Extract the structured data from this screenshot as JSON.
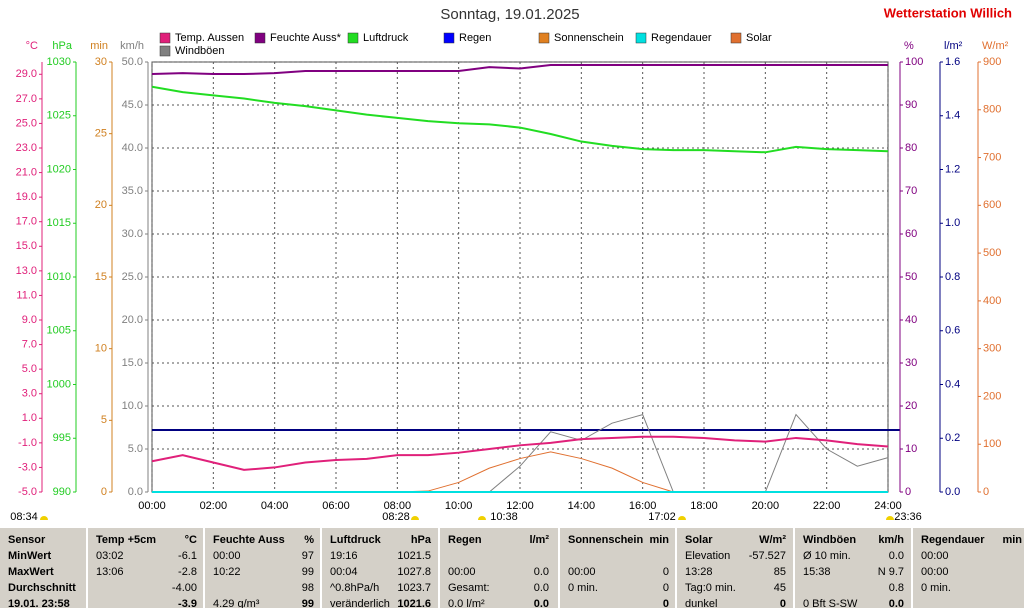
{
  "chart_data": {
    "type": "line",
    "title": "Sonntag, 19.01.2025",
    "station": "Wetterstation Willich",
    "x": [
      0,
      1,
      2,
      3,
      4,
      5,
      6,
      7,
      8,
      9,
      10,
      11,
      12,
      13,
      14,
      15,
      16,
      17,
      18,
      19,
      20,
      21,
      22,
      23,
      24
    ],
    "xlim": [
      0,
      24
    ],
    "xticks": [
      {
        "value": 0,
        "label": "00:00"
      },
      {
        "value": 2,
        "label": "02:00"
      },
      {
        "value": 4,
        "label": "04:00"
      },
      {
        "value": 6,
        "label": "06:00"
      },
      {
        "value": 8,
        "label": "08:00"
      },
      {
        "value": 10,
        "label": "10:00"
      },
      {
        "value": 12,
        "label": "12:00"
      },
      {
        "value": 14,
        "label": "14:00"
      },
      {
        "value": 16,
        "label": "16:00"
      },
      {
        "value": 18,
        "label": "18:00"
      },
      {
        "value": 20,
        "label": "20:00"
      },
      {
        "value": 22,
        "label": "22:00"
      },
      {
        "value": 24,
        "label": "24:00"
      }
    ],
    "axes": [
      {
        "id": "t",
        "label": "°C",
        "color": "#e0207a",
        "side": "left",
        "lim": [
          -5,
          30
        ],
        "ticks": [
          {
            "value": -5,
            "label": "-5.0"
          },
          {
            "value": -3,
            "label": "-3.0"
          },
          {
            "value": -1,
            "label": "-1.0"
          },
          {
            "value": 1,
            "label": "1.0"
          },
          {
            "value": 3,
            "label": "3.0"
          },
          {
            "value": 5,
            "label": "5.0"
          },
          {
            "value": 7,
            "label": "7.0"
          },
          {
            "value": 9,
            "label": "9.0"
          },
          {
            "value": 11,
            "label": "11.0"
          },
          {
            "value": 13,
            "label": "13.0"
          },
          {
            "value": 15,
            "label": "15.0"
          },
          {
            "value": 17,
            "label": "17.0"
          },
          {
            "value": 19,
            "label": "19.0"
          },
          {
            "value": 21,
            "label": "21.0"
          },
          {
            "value": 23,
            "label": "23.0"
          },
          {
            "value": 25,
            "label": "25.0"
          },
          {
            "value": 27,
            "label": "27.0"
          },
          {
            "value": 29,
            "label": "29.0"
          }
        ]
      },
      {
        "id": "p",
        "label": "hPa",
        "color": "#22cc22",
        "side": "left",
        "lim": [
          990,
          1030
        ],
        "ticks": [
          990,
          995,
          1000,
          1005,
          1010,
          1015,
          1020,
          1025,
          1030
        ]
      },
      {
        "id": "m",
        "label": "min",
        "color": "#d08020",
        "side": "left",
        "lim": [
          0,
          30
        ],
        "ticks": [
          0,
          5,
          10,
          15,
          20,
          25,
          30
        ]
      },
      {
        "id": "w",
        "label": "km/h",
        "color": "#808080",
        "side": "left",
        "lim": [
          0,
          50
        ],
        "grid": true,
        "ticks": [
          {
            "value": 0,
            "label": "0.0"
          },
          {
            "value": 5,
            "label": "5.0"
          },
          {
            "value": 10,
            "label": "10.0"
          },
          {
            "value": 15,
            "label": "15.0"
          },
          {
            "value": 20,
            "label": "20.0"
          },
          {
            "value": 25,
            "label": "25.0"
          },
          {
            "value": 30,
            "label": "30.0"
          },
          {
            "value": 35,
            "label": "35.0"
          },
          {
            "value": 40,
            "label": "40.0"
          },
          {
            "value": 45,
            "label": "45.0"
          },
          {
            "value": 50,
            "label": "50.0"
          }
        ]
      },
      {
        "id": "h",
        "label": "%",
        "color": "#800080",
        "side": "right",
        "lim": [
          0,
          100
        ],
        "ticks": [
          0,
          10,
          20,
          30,
          40,
          50,
          60,
          70,
          80,
          90,
          100
        ]
      },
      {
        "id": "r",
        "label": "l/m²",
        "color": "#000080",
        "side": "right",
        "lim": [
          0,
          1.6
        ],
        "ticks": [
          {
            "value": 0,
            "label": "0.0"
          },
          0.2,
          0.4,
          0.6,
          0.8,
          {
            "value": 1,
            "label": "1.0"
          },
          1.2,
          1.4,
          1.6
        ]
      },
      {
        "id": "s",
        "label": "W/m²",
        "color": "#e07030",
        "side": "right",
        "lim": [
          0,
          900
        ],
        "ticks": [
          0,
          100,
          200,
          300,
          400,
          500,
          600,
          700,
          800,
          900
        ]
      }
    ],
    "series": [
      {
        "name": "Temp. Aussen",
        "color": "#e0207a",
        "axis": "t",
        "values": [
          -2.5,
          -2.0,
          -2.6,
          -3.2,
          -3.0,
          -2.6,
          -2.4,
          -2.3,
          -2.0,
          -2.0,
          -1.8,
          -1.5,
          -1.2,
          -1.0,
          -0.7,
          -0.6,
          -0.5,
          -0.5,
          -0.6,
          -0.8,
          -0.9,
          -0.6,
          -0.8,
          -1.1,
          -1.3
        ]
      },
      {
        "name": "Feuchte Auss*",
        "color": "#800080",
        "axis": "h",
        "values": [
          97.2,
          97.4,
          97.2,
          97.2,
          97.4,
          97.9,
          97.9,
          97.9,
          97.9,
          97.9,
          97.9,
          98.8,
          98.5,
          99.3,
          99.3,
          99.3,
          99.3,
          99.3,
          99.3,
          99.3,
          99.3,
          99.3,
          99.3,
          99.3,
          99.3
        ]
      },
      {
        "name": "Luftdruck",
        "color": "#22dd22",
        "axis": "p",
        "values": [
          1027.7,
          1027.2,
          1026.9,
          1026.6,
          1026.2,
          1025.9,
          1025.5,
          1025.1,
          1024.8,
          1024.5,
          1024.3,
          1024.2,
          1023.9,
          1023.3,
          1022.6,
          1022.2,
          1021.9,
          1021.8,
          1021.8,
          1021.7,
          1021.6,
          1022.1,
          1021.9,
          1021.8,
          1021.7
        ]
      },
      {
        "name": "Regen",
        "color": "#0000ff",
        "axis": "r",
        "values": [
          0,
          0,
          0,
          0,
          0,
          0,
          0,
          0,
          0,
          0,
          0,
          0,
          0,
          0,
          0,
          0,
          0,
          0,
          0,
          0,
          0,
          0,
          0,
          0,
          0
        ]
      },
      {
        "name": "Sonnenschein",
        "color": "#e08020",
        "axis": "m",
        "values": [
          0,
          0,
          0,
          0,
          0,
          0,
          0,
          0,
          0,
          0,
          0,
          0,
          0,
          0,
          0,
          0,
          0,
          0,
          0,
          0,
          0,
          0,
          0,
          0,
          0
        ]
      },
      {
        "name": "Regendauer",
        "color": "#00e0e0",
        "axis": "m",
        "values": [
          0,
          0,
          0,
          0,
          0,
          0,
          0,
          0,
          0,
          0,
          0,
          0,
          0,
          0,
          0,
          0,
          0,
          0,
          0,
          0,
          0,
          0,
          0,
          0,
          0
        ]
      },
      {
        "name": "Solar",
        "color": "#e07030",
        "axis": "s",
        "values": [
          null,
          null,
          null,
          null,
          null,
          null,
          null,
          null,
          0,
          2,
          20,
          50,
          70,
          84,
          70,
          50,
          20,
          0,
          null,
          null,
          null,
          null,
          null,
          null,
          null
        ]
      },
      {
        "name": "Windböen",
        "color": "#808080",
        "axis": "w",
        "values": [
          0,
          0,
          0,
          0,
          0,
          0,
          0,
          0,
          0,
          0,
          0,
          0,
          3,
          7,
          6,
          8,
          9,
          0,
          0,
          0,
          0,
          9,
          5,
          3,
          4
        ]
      }
    ],
    "annotations": [
      "08:34",
      "08:28",
      "10:38",
      "17:02",
      "23:36"
    ]
  },
  "table": {
    "header": [
      {
        "l": "Sensor"
      },
      {
        "l": "Temp +5cm",
        "r": "°C"
      },
      {
        "l": "Feuchte Auss",
        "r": "%"
      },
      {
        "l": "Luftdruck",
        "r": "hPa"
      },
      {
        "l": "Regen",
        "r": "l/m²"
      },
      {
        "l": "Sonnenschein",
        "r": "min"
      },
      {
        "l": "Solar",
        "r": "W/m²"
      },
      {
        "l": "Windböen",
        "r": "km/h"
      },
      {
        "l": "Regendauer",
        "r": "min"
      }
    ],
    "rows": [
      [
        {
          "l": "MinWert"
        },
        {
          "l": "03:02",
          "r": "-6.1"
        },
        {
          "l": "00:00",
          "r": "97"
        },
        {
          "l": "19:16",
          "r": "1021.5"
        },
        {},
        {},
        {
          "l": "Elevation",
          "r": "-57.527"
        },
        {
          "l": "Ø 10 min.",
          "r": "0.0"
        },
        {
          "l": "00:00"
        }
      ],
      [
        {
          "l": "MaxWert"
        },
        {
          "l": "13:06",
          "r": "-2.8"
        },
        {
          "l": "10:22",
          "r": "99"
        },
        {
          "l": "00:04",
          "r": "1027.8"
        },
        {
          "l": "00:00",
          "r": "0.0"
        },
        {
          "l": "00:00",
          "r": "0"
        },
        {
          "l": "13:28",
          "r": "85"
        },
        {
          "l": "15:38",
          "r": "N 9.7"
        },
        {
          "l": "00:00"
        }
      ],
      [
        {
          "l": "Durchschnitt"
        },
        {
          "r": "-4.00"
        },
        {
          "r": "98"
        },
        {
          "l": "^0.8hPa/h",
          "r": "1023.7"
        },
        {
          "l": "Gesamt:",
          "r": "0.0"
        },
        {
          "l": "0 min.",
          "r": "0"
        },
        {
          "l": "Tag:0 min.",
          "r": "45"
        },
        {
          "r": "0.8"
        },
        {
          "l": "0 min."
        }
      ],
      [
        {
          "l": "19.01. 23:58"
        },
        {
          "r": "-3.9"
        },
        {
          "l": "4.29 g/m³",
          "r": "99"
        },
        {
          "l": "veränderlich",
          "r": "1021.6"
        },
        {
          "l": "0.0 l/m²",
          "r": "0.0"
        },
        {
          "r": "0"
        },
        {
          "l": "dunkel",
          "r": "0"
        },
        {
          "l": "0 Bft S-SW",
          "r": "0.0"
        },
        {}
      ]
    ]
  }
}
